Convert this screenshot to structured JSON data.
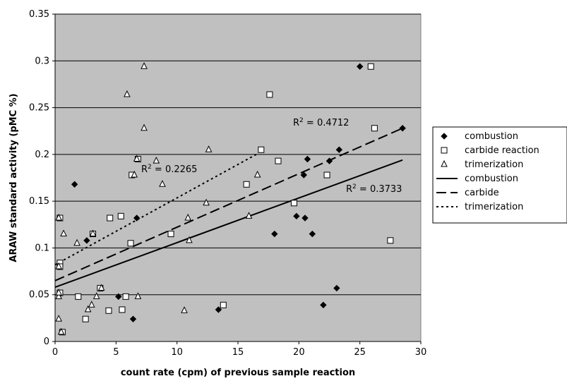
{
  "chart_data": {
    "type": "scatter",
    "title": "",
    "xlabel": "count rate (cpm) of previous sample reaction",
    "ylabel": "ARAW standard activity (pMC %)",
    "xlim": [
      0,
      30
    ],
    "ylim": [
      0,
      0.35
    ],
    "x_ticks": [
      0,
      5,
      10,
      15,
      20,
      25,
      30
    ],
    "y_ticks": [
      0,
      0.05,
      0.1,
      0.15,
      0.2,
      0.25,
      0.3,
      0.35
    ],
    "x_tick_labels": [
      "0",
      "5",
      "10",
      "15",
      "20",
      "25",
      "30"
    ],
    "y_tick_labels": [
      "0",
      "0.05",
      "0.1",
      "0.15",
      "0.2",
      "0.25",
      "0.3",
      "0.35"
    ],
    "grid": "horizontal",
    "plot_background": "#c0c0c0",
    "legend_position": "right",
    "series": [
      {
        "name": "combustion",
        "marker": "diamond-filled",
        "points": [
          [
            1.6,
            0.168
          ],
          [
            2.6,
            0.108
          ],
          [
            5.2,
            0.048
          ],
          [
            6.4,
            0.024
          ],
          [
            6.7,
            0.132
          ],
          [
            13.4,
            0.034
          ],
          [
            18.0,
            0.115
          ],
          [
            19.8,
            0.134
          ],
          [
            20.4,
            0.178
          ],
          [
            20.5,
            0.132
          ],
          [
            20.7,
            0.195
          ],
          [
            21.1,
            0.115
          ],
          [
            22.0,
            0.039
          ],
          [
            22.5,
            0.193
          ],
          [
            23.1,
            0.057
          ],
          [
            23.3,
            0.205
          ],
          [
            25.0,
            0.294
          ],
          [
            28.5,
            0.228
          ]
        ]
      },
      {
        "name": "carbide reaction",
        "marker": "square-open",
        "points": [
          [
            0.4,
            0.132
          ],
          [
            0.4,
            0.084
          ],
          [
            0.4,
            0.08
          ],
          [
            0.4,
            0.052
          ],
          [
            0.6,
            0.01
          ],
          [
            1.9,
            0.048
          ],
          [
            2.5,
            0.024
          ],
          [
            3.1,
            0.115
          ],
          [
            3.7,
            0.057
          ],
          [
            4.4,
            0.033
          ],
          [
            4.5,
            0.132
          ],
          [
            5.4,
            0.134
          ],
          [
            5.5,
            0.034
          ],
          [
            5.8,
            0.048
          ],
          [
            6.2,
            0.105
          ],
          [
            6.3,
            0.178
          ],
          [
            6.8,
            0.195
          ],
          [
            9.5,
            0.115
          ],
          [
            13.8,
            0.039
          ],
          [
            15.7,
            0.168
          ],
          [
            16.9,
            0.205
          ],
          [
            17.6,
            0.264
          ],
          [
            18.3,
            0.193
          ],
          [
            19.6,
            0.148
          ],
          [
            22.3,
            0.178
          ],
          [
            25.9,
            0.294
          ],
          [
            26.2,
            0.228
          ],
          [
            27.5,
            0.108
          ]
        ]
      },
      {
        "name": "trimerization",
        "marker": "triangle-open",
        "points": [
          [
            0.3,
            0.132
          ],
          [
            0.3,
            0.08
          ],
          [
            0.3,
            0.048
          ],
          [
            0.3,
            0.052
          ],
          [
            0.3,
            0.024
          ],
          [
            0.5,
            0.01
          ],
          [
            0.7,
            0.115
          ],
          [
            1.8,
            0.105
          ],
          [
            2.7,
            0.034
          ],
          [
            3.0,
            0.039
          ],
          [
            3.1,
            0.115
          ],
          [
            3.4,
            0.048
          ],
          [
            3.8,
            0.057
          ],
          [
            5.9,
            0.264
          ],
          [
            6.5,
            0.178
          ],
          [
            6.7,
            0.195
          ],
          [
            6.8,
            0.048
          ],
          [
            7.3,
            0.294
          ],
          [
            7.3,
            0.228
          ],
          [
            8.3,
            0.193
          ],
          [
            8.8,
            0.168
          ],
          [
            10.6,
            0.033
          ],
          [
            10.9,
            0.132
          ],
          [
            11.0,
            0.108
          ],
          [
            12.4,
            0.148
          ],
          [
            12.6,
            0.205
          ],
          [
            15.9,
            0.134
          ],
          [
            16.6,
            0.178
          ]
        ]
      }
    ],
    "trendlines": [
      {
        "name": "combustion",
        "style": "solid",
        "x": [
          0,
          28.5
        ],
        "y": [
          0.058,
          0.194
        ],
        "r2_label": "R² = 0.3733"
      },
      {
        "name": "carbide",
        "style": "dashed",
        "x": [
          0,
          28.5
        ],
        "y": [
          0.065,
          0.228
        ],
        "r2_label": "R² = 0.4712"
      },
      {
        "name": "trimerization",
        "style": "dotted",
        "x": [
          0,
          16.5
        ],
        "y": [
          0.082,
          0.2
        ],
        "r2_label": "R² = 0.2265"
      }
    ]
  }
}
